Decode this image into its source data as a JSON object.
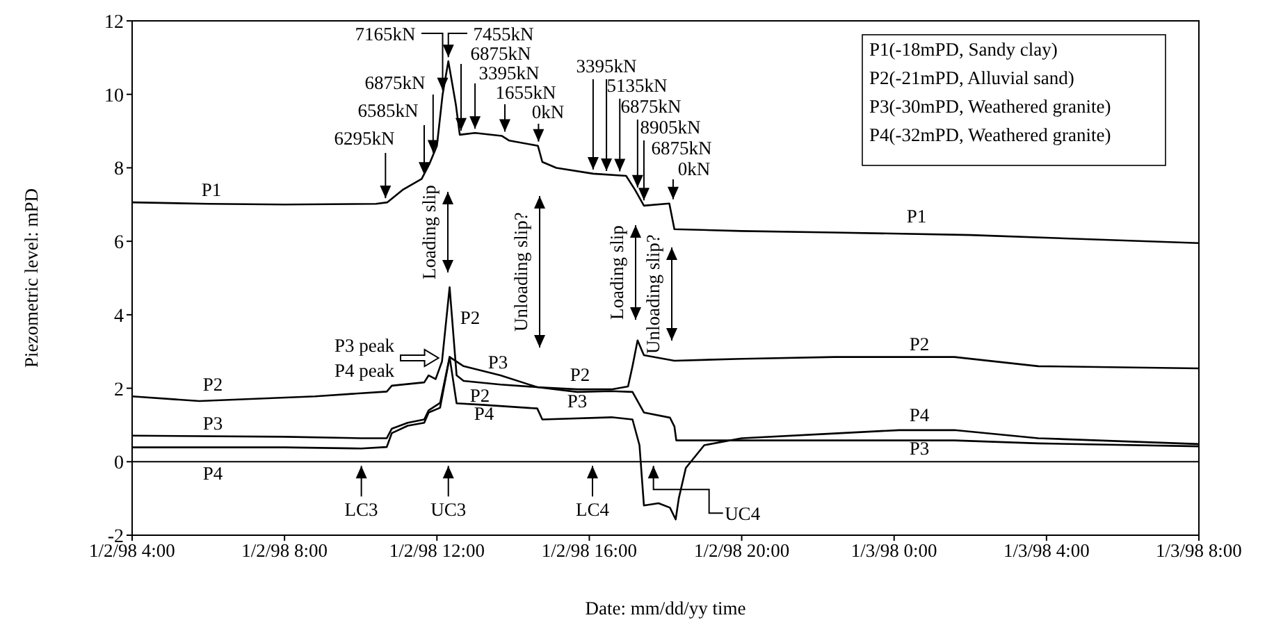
{
  "chart_data": {
    "type": "line",
    "xlabel": "Date: mm/dd/yy time",
    "ylabel": "Piezometric level: mPD",
    "xlim": [
      "1998-01-02T04:00",
      "1998-01-03T08:00"
    ],
    "xticks": [
      {
        "value": "1998-01-02T04:00",
        "label": "1/2/98 4:00"
      },
      {
        "value": "1998-01-02T08:00",
        "label": "1/2/98 8:00"
      },
      {
        "value": "1998-01-02T12:00",
        "label": "1/2/98 12:00"
      },
      {
        "value": "1998-01-02T16:00",
        "label": "1/2/98 16:00"
      },
      {
        "value": "1998-01-02T20:00",
        "label": "1/2/98 20:00"
      },
      {
        "value": "1998-01-03T00:00",
        "label": "1/3/98 0:00"
      },
      {
        "value": "1998-01-03T04:00",
        "label": "1/3/98 4:00"
      },
      {
        "value": "1998-01-03T08:00",
        "label": "1/3/98 8:00"
      }
    ],
    "ylim": [
      -2,
      12
    ],
    "yticks": [
      -2,
      0,
      2,
      4,
      6,
      8,
      10,
      12
    ],
    "grid": false,
    "legend": false,
    "ref_lines": [
      {
        "axis": "y",
        "value": 0,
        "color": "#000000"
      }
    ],
    "series": [
      {
        "name": "P1",
        "color": "#000000",
        "x": [
          "1998-01-02T04:00",
          "1998-01-02T06:00",
          "1998-01-02T08:00",
          "1998-01-02T10:24",
          "1998-01-02T10:42",
          "1998-01-02T11:06",
          "1998-01-02T11:36",
          "1998-01-02T11:48",
          "1998-01-02T12:00",
          "1998-01-02T12:09",
          "1998-01-02T12:18",
          "1998-01-02T12:30",
          "1998-01-02T12:36",
          "1998-01-02T13:00",
          "1998-01-02T13:42",
          "1998-01-02T13:54",
          "1998-01-02T14:39",
          "1998-01-02T14:46",
          "1998-01-02T15:08",
          "1998-01-02T16:06",
          "1998-01-02T16:58",
          "1998-01-02T17:12",
          "1998-01-02T17:26",
          "1998-01-02T18:06",
          "1998-01-02T18:14",
          "1998-01-02T20:00",
          "1998-01-02T22:24",
          "1998-01-03T02:00",
          "1998-01-03T08:00"
        ],
        "values": [
          7.06,
          7.02,
          7.0,
          7.02,
          7.06,
          7.4,
          7.7,
          8.1,
          8.6,
          10.0,
          10.9,
          9.7,
          8.9,
          8.95,
          8.87,
          8.74,
          8.6,
          8.16,
          8.0,
          7.84,
          7.78,
          7.4,
          6.97,
          7.03,
          6.33,
          6.28,
          6.24,
          6.17,
          5.95
        ]
      },
      {
        "name": "P2",
        "color": "#000000",
        "x": [
          "1998-01-02T04:00",
          "1998-01-02T05:46",
          "1998-01-02T08:48",
          "1998-01-02T10:41",
          "1998-01-02T10:49",
          "1998-01-02T11:40",
          "1998-01-02T11:47",
          "1998-01-02T11:58",
          "1998-01-02T12:08",
          "1998-01-02T12:20",
          "1998-01-02T12:31",
          "1998-01-02T12:42",
          "1998-01-02T13:40",
          "1998-01-02T14:38",
          "1998-01-02T15:41",
          "1998-01-02T16:35",
          "1998-01-02T17:01",
          "1998-01-02T17:08",
          "1998-01-02T17:16",
          "1998-01-02T17:26",
          "1998-01-02T18:14",
          "1998-01-02T20:00",
          "1998-01-02T22:26",
          "1998-01-03T01:35",
          "1998-01-03T03:47",
          "1998-01-03T08:00"
        ],
        "values": [
          1.78,
          1.65,
          1.78,
          1.91,
          2.07,
          2.16,
          2.35,
          2.25,
          2.73,
          4.75,
          2.35,
          2.2,
          2.1,
          2.03,
          1.97,
          1.97,
          2.05,
          2.6,
          3.3,
          2.9,
          2.75,
          2.8,
          2.85,
          2.85,
          2.6,
          2.54
        ]
      },
      {
        "name": "P3",
        "color": "#000000",
        "x": [
          "1998-01-02T04:00",
          "1998-01-02T08:00",
          "1998-01-02T10:01",
          "1998-01-02T10:41",
          "1998-01-02T10:49",
          "1998-01-02T11:14",
          "1998-01-02T11:40",
          "1998-01-02T11:47",
          "1998-01-02T12:05",
          "1998-01-02T12:20",
          "1998-01-02T12:42",
          "1998-01-02T13:40",
          "1998-01-02T14:38",
          "1998-01-02T15:41",
          "1998-01-02T16:35",
          "1998-01-02T17:08",
          "1998-01-02T17:26",
          "1998-01-02T18:07",
          "1998-01-02T18:14",
          "1998-01-02T18:17",
          "1998-01-02T20:00",
          "1998-01-02T22:26",
          "1998-01-03T01:35",
          "1998-01-03T03:47",
          "1998-01-03T08:00"
        ],
        "values": [
          0.71,
          0.68,
          0.64,
          0.64,
          0.9,
          1.06,
          1.15,
          1.4,
          1.6,
          2.85,
          2.6,
          2.35,
          2.03,
          1.9,
          1.92,
          1.9,
          1.34,
          1.2,
          0.96,
          0.58,
          0.58,
          0.58,
          0.58,
          0.5,
          0.42
        ]
      },
      {
        "name": "P4",
        "color": "#000000",
        "x": [
          "1998-01-02T04:00",
          "1998-01-02T08:00",
          "1998-01-02T10:01",
          "1998-01-02T10:41",
          "1998-01-02T10:49",
          "1998-01-02T11:14",
          "1998-01-02T11:40",
          "1998-01-02T11:47",
          "1998-01-02T12:05",
          "1998-01-02T12:20",
          "1998-01-02T12:31",
          "1998-01-02T13:11",
          "1998-01-02T14:38",
          "1998-01-02T14:46",
          "1998-01-02T16:35",
          "1998-01-02T17:08",
          "1998-01-02T17:19",
          "1998-01-02T17:26",
          "1998-01-02T17:49",
          "1998-01-02T18:07",
          "1998-01-02T18:16",
          "1998-01-02T18:21",
          "1998-01-02T18:32",
          "1998-01-02T19:01",
          "1998-01-02T20:00",
          "1998-01-02T22:26",
          "1998-01-03T00:08",
          "1998-01-03T01:35",
          "1998-01-03T03:47",
          "1998-01-03T08:00"
        ],
        "values": [
          0.39,
          0.39,
          0.36,
          0.4,
          0.78,
          0.98,
          1.06,
          1.34,
          1.47,
          2.85,
          1.59,
          1.55,
          1.45,
          1.15,
          1.21,
          1.15,
          0.45,
          -1.19,
          -1.13,
          -1.25,
          -1.57,
          -0.99,
          -0.17,
          0.45,
          0.64,
          0.77,
          0.86,
          0.86,
          0.64,
          0.48
        ]
      }
    ],
    "annotations": [
      {
        "text": "6295kN",
        "x": "1998-01-02T10:39",
        "y": 7.06
      },
      {
        "text": "6585kN",
        "x": "1998-01-02T11:40",
        "y": 7.7
      },
      {
        "text": "6875kN",
        "x": "1998-01-02T11:54",
        "y": 8.3
      },
      {
        "text": "7165kN",
        "x": "1998-01-02T12:09",
        "y": 10.0
      },
      {
        "text": "7455kN",
        "x": "1998-01-02T12:18",
        "y": 10.9
      },
      {
        "text": "6875kN",
        "x": "1998-01-02T12:38",
        "y": 8.9
      },
      {
        "text": "3395kN",
        "x": "1998-01-02T13:00",
        "y": 8.95
      },
      {
        "text": "1655kN",
        "x": "1998-01-02T13:47",
        "y": 8.87
      },
      {
        "text": "0kN",
        "x": "1998-01-02T14:40",
        "y": 8.6
      },
      {
        "text": "3395kN",
        "x": "1998-01-02T16:06",
        "y": 7.84
      },
      {
        "text": "5135kN",
        "x": "1998-01-02T16:27",
        "y": 7.8
      },
      {
        "text": "6875kN",
        "x": "1998-01-02T16:48",
        "y": 7.79
      },
      {
        "text": "8905kN",
        "x": "1998-01-02T17:16",
        "y": 7.35
      },
      {
        "text": "6875kN",
        "x": "1998-01-02T17:26",
        "y": 7.0
      },
      {
        "text": "0kN",
        "x": "1998-01-02T18:12",
        "y": 7.03
      },
      "Loading slip",
      "Unloading slip?",
      "Loading slip",
      "Unloading slip?",
      {
        "text": "P3 peak",
        "x": "1998-01-02T12:20",
        "y": 2.85
      },
      {
        "text": "P4 peak",
        "x": "1998-01-02T12:20",
        "y": 2.85
      },
      {
        "text": "LC3",
        "x": "1998-01-02T10:01",
        "y": 0
      },
      {
        "text": "UC3",
        "x": "1998-01-02T12:18",
        "y": 0
      },
      {
        "text": "LC4",
        "x": "1998-01-02T16:05",
        "y": 0
      },
      {
        "text": "UC4",
        "x": "1998-01-02T17:41",
        "y": 0
      },
      "P1(-18mPD, Sandy clay)",
      "P2(-21mPD, Alluvial sand)",
      "P3(-30mPD, Weathered granite)",
      "P4(-32mPD, Weathered granite)"
    ]
  }
}
